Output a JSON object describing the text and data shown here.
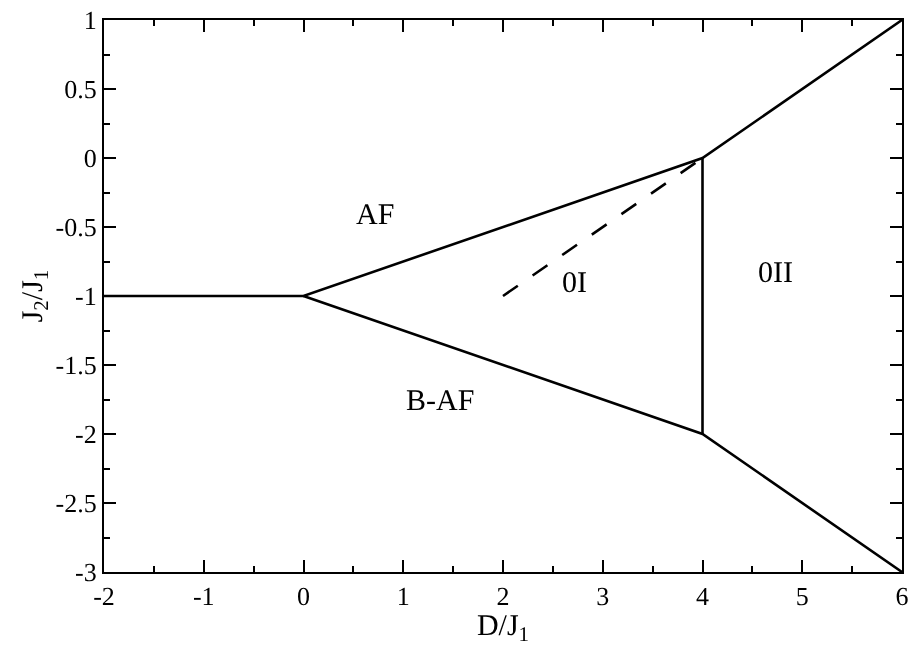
{
  "chart_data": {
    "type": "line",
    "xlabel": "D/J$_{1}$",
    "ylabel": "J$_{2}$/J$_{1}$",
    "xlim": [
      -2,
      6
    ],
    "ylim": [
      -3,
      1
    ],
    "xticks": [
      -2,
      -1,
      0,
      1,
      2,
      3,
      4,
      5,
      6
    ],
    "yticks": [
      -3,
      -2.5,
      -2,
      -1.5,
      -1,
      -0.5,
      0,
      0.5,
      1
    ],
    "grid": false,
    "marker": "none",
    "series": [
      {
        "color": "#000000",
        "x": [
          -2,
          0,
          4,
          6
        ],
        "values": [
          -1,
          -1,
          0,
          1
        ]
      },
      {
        "color": "#000000",
        "x": [
          0,
          4,
          6
        ],
        "values": [
          -1,
          -2,
          -3
        ]
      },
      {
        "color": "#000000",
        "x": [
          4,
          4
        ],
        "values": [
          0,
          -2
        ]
      },
      {
        "color": "#000000",
        "x": [
          2,
          4
        ],
        "values": [
          -1,
          0
        ],
        "line_style": "dashed"
      }
    ],
    "annotations": [
      "AF",
      "0I",
      "0II",
      "B-AF"
    ]
  }
}
